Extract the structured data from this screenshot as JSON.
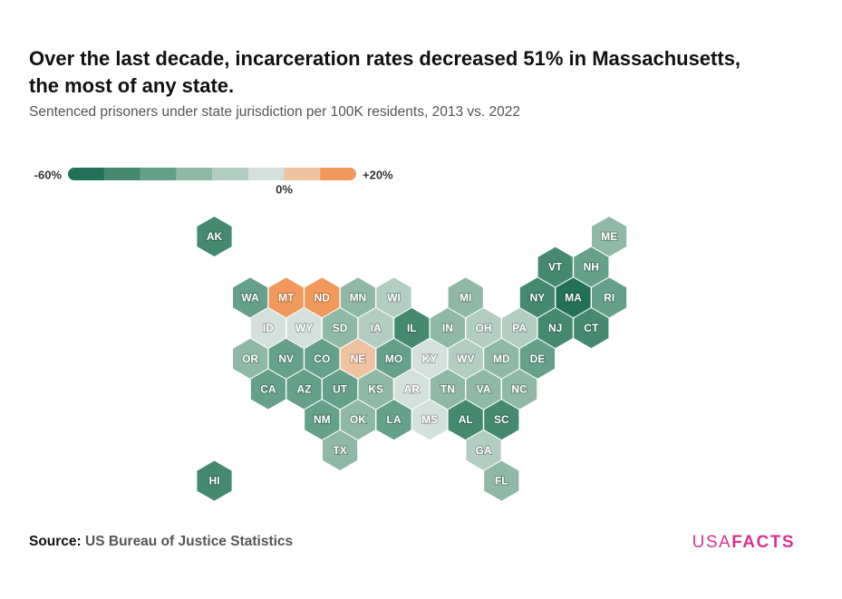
{
  "title_lines": [
    "Over the last decade, incarceration rates decreased 51% in Massachusetts,",
    "the most of any state."
  ],
  "subtitle": "Sentenced prisoners under state jurisdiction per 100K residents, 2013 vs. 2022",
  "legend": {
    "lim": [
      -60,
      20
    ],
    "colors": [
      "#237158",
      "#458a70",
      "#65a08a",
      "#8fb8a6",
      "#b2cdc1",
      "#d4e0db",
      "#f0c3a0",
      "#f0995a"
    ],
    "labels": [
      {
        "value": -60,
        "label": "-60%"
      },
      {
        "value": 0,
        "label": "0%"
      },
      {
        "value": 20,
        "label": "+20%"
      }
    ]
  },
  "states": [
    {
      "label": "AK",
      "color": "#458a70"
    },
    {
      "label": "ME",
      "color": "#8fb8a6"
    },
    {
      "label": "VT",
      "color": "#458a70"
    },
    {
      "label": "NH",
      "color": "#65a08a"
    },
    {
      "label": "WA",
      "color": "#65a08a"
    },
    {
      "label": "MT",
      "color": "#f0995a"
    },
    {
      "label": "ND",
      "color": "#f0995a"
    },
    {
      "label": "MN",
      "color": "#8fb8a6"
    },
    {
      "label": "WI",
      "color": "#b2cdc1"
    },
    {
      "label": "MI",
      "color": "#8fb8a6"
    },
    {
      "label": "NY",
      "color": "#458a70"
    },
    {
      "label": "MA",
      "color": "#237158"
    },
    {
      "label": "RI",
      "color": "#65a08a"
    },
    {
      "label": "ID",
      "color": "#d4e0db"
    },
    {
      "label": "WY",
      "color": "#d4e0db"
    },
    {
      "label": "SD",
      "color": "#8fb8a6"
    },
    {
      "label": "IA",
      "color": "#b2cdc1"
    },
    {
      "label": "IL",
      "color": "#458a70"
    },
    {
      "label": "IN",
      "color": "#8fb8a6"
    },
    {
      "label": "OH",
      "color": "#b2cdc1"
    },
    {
      "label": "PA",
      "color": "#b2cdc1"
    },
    {
      "label": "NJ",
      "color": "#458a70"
    },
    {
      "label": "CT",
      "color": "#458a70"
    },
    {
      "label": "OR",
      "color": "#8fb8a6"
    },
    {
      "label": "NV",
      "color": "#65a08a"
    },
    {
      "label": "CO",
      "color": "#65a08a"
    },
    {
      "label": "NE",
      "color": "#f0c3a0"
    },
    {
      "label": "MO",
      "color": "#65a08a"
    },
    {
      "label": "KY",
      "color": "#d4e0db"
    },
    {
      "label": "WV",
      "color": "#b2cdc1"
    },
    {
      "label": "MD",
      "color": "#8fb8a6"
    },
    {
      "label": "DE",
      "color": "#65a08a"
    },
    {
      "label": "CA",
      "color": "#65a08a"
    },
    {
      "label": "AZ",
      "color": "#65a08a"
    },
    {
      "label": "UT",
      "color": "#65a08a"
    },
    {
      "label": "KS",
      "color": "#8fb8a6"
    },
    {
      "label": "AR",
      "color": "#d4e0db"
    },
    {
      "label": "TN",
      "color": "#8fb8a6"
    },
    {
      "label": "VA",
      "color": "#8fb8a6"
    },
    {
      "label": "NC",
      "color": "#8fb8a6"
    },
    {
      "label": "NM",
      "color": "#65a08a"
    },
    {
      "label": "OK",
      "color": "#8fb8a6"
    },
    {
      "label": "LA",
      "color": "#65a08a"
    },
    {
      "label": "MS",
      "color": "#d4e0db"
    },
    {
      "label": "AL",
      "color": "#458a70"
    },
    {
      "label": "SC",
      "color": "#458a70"
    },
    {
      "label": "TX",
      "color": "#8fb8a6"
    },
    {
      "label": "GA",
      "color": "#b2cdc1"
    },
    {
      "label": "HI",
      "color": "#458a70"
    },
    {
      "label": "FL",
      "color": "#8fb8a6"
    }
  ],
  "source": {
    "label": "Source:",
    "text": "US Bureau of Justice Statistics"
  },
  "logo": {
    "light": "USA",
    "bold": "FACTS"
  }
}
